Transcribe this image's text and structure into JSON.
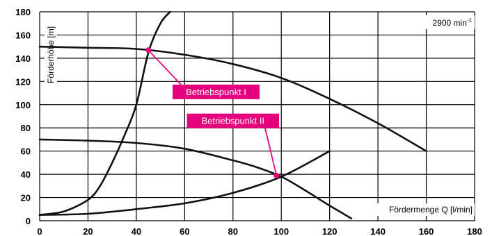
{
  "chart_data": {
    "type": "line",
    "title": "",
    "xlabel": "Fördermenge Q [l/min]",
    "ylabel": "Förderhöhe [m]",
    "speed_label": {
      "main": "2900 min",
      "sup": "-1"
    },
    "xlim": [
      0,
      180
    ],
    "ylim": [
      0,
      180
    ],
    "x_ticks": [
      0,
      20,
      40,
      60,
      80,
      100,
      120,
      140,
      160,
      180
    ],
    "y_ticks": [
      0,
      20,
      40,
      60,
      80,
      100,
      120,
      140,
      160,
      180
    ],
    "grid": true,
    "series": [
      {
        "x": [
          0,
          20,
          40,
          60,
          80,
          100,
          120,
          140,
          160
        ],
        "y": [
          150,
          149,
          148,
          143,
          135,
          123,
          105,
          84,
          60
        ]
      },
      {
        "x": [
          0,
          20,
          40,
          60,
          80,
          90,
          100,
          110,
          120,
          129
        ],
        "y": [
          70,
          69,
          67,
          62,
          52,
          46,
          38,
          26,
          13,
          2
        ]
      },
      {
        "x": [
          0,
          10,
          20,
          25,
          30,
          35,
          40,
          45,
          50,
          54
        ],
        "y": [
          5,
          8,
          18,
          30,
          50,
          73,
          100,
          145,
          170,
          180
        ]
      },
      {
        "x": [
          0,
          20,
          40,
          60,
          80,
          100,
          120
        ],
        "y": [
          5,
          6,
          10,
          15,
          24,
          38,
          60
        ]
      }
    ],
    "operating_points": [
      {
        "label": "Betriebspunkt I",
        "x": 45,
        "y": 147,
        "label_x": 55,
        "label_y": 111
      },
      {
        "label": "Betriebspunkt II",
        "x": 98,
        "y": 39,
        "label_x": 80,
        "label_y": 86
      }
    ],
    "colors": {
      "curve": "#111111",
      "grid": "#000000",
      "callout": "#e5007e"
    }
  }
}
